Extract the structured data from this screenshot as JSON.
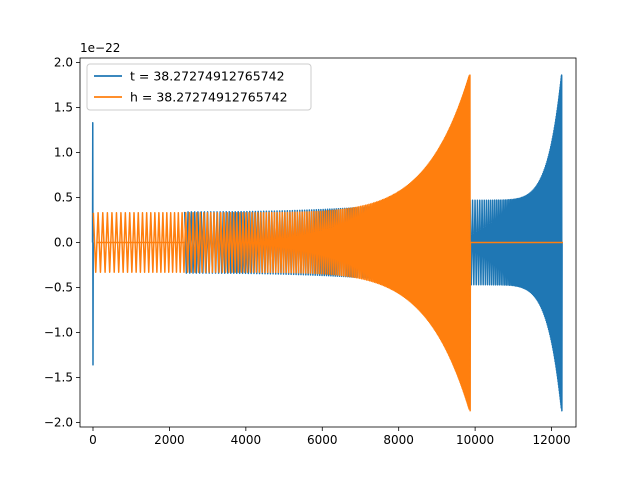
{
  "chart_data": {
    "type": "line",
    "title": "",
    "xlabel": "",
    "ylabel": "",
    "y_offset_label": "1e−22",
    "xlim": [
      -340,
      12640
    ],
    "ylim": [
      -2.05,
      2.05
    ],
    "x_ticks": [
      0,
      2000,
      4000,
      6000,
      8000,
      10000,
      12000
    ],
    "x_tick_labels": [
      "0",
      "2000",
      "4000",
      "6000",
      "8000",
      "10000",
      "12000"
    ],
    "y_ticks": [
      -2.0,
      -1.5,
      -1.0,
      -0.5,
      0.0,
      0.5,
      1.0,
      1.5,
      2.0
    ],
    "y_tick_labels": [
      "−2.0",
      "−1.5",
      "−1.0",
      "−0.5",
      "0.0",
      "0.5",
      "1.0",
      "1.5",
      "2.0"
    ],
    "grid": false,
    "legend_position": "top-left",
    "series": [
      {
        "name": "t = 38.27274912765742",
        "color": "#1f77b4",
        "description_points": [
          {
            "x": 0,
            "y_min": -1.36,
            "y_max": 1.33
          },
          {
            "x": 100,
            "y_min": -0.33,
            "y_max": 0.33
          },
          {
            "x": 2400,
            "y_min": -0.33,
            "y_max": 0.34
          },
          {
            "x": 9800,
            "y_min": -0.5,
            "y_max": 0.5
          },
          {
            "x": 12260,
            "y_min": -1.87,
            "y_max": 1.86
          }
        ]
      },
      {
        "name": "h = 38.27274912765742",
        "color": "#ff7f0e",
        "description_points": [
          {
            "x": 0,
            "y_min": -0.33,
            "y_max": 0.33
          },
          {
            "x": 2400,
            "y_min": -0.36,
            "y_max": 0.36
          },
          {
            "x": 9850,
            "y_min": -1.87,
            "y_max": 1.86
          },
          {
            "x": 12300,
            "y_min": 0.0,
            "y_max": 0.0
          }
        ]
      }
    ]
  }
}
